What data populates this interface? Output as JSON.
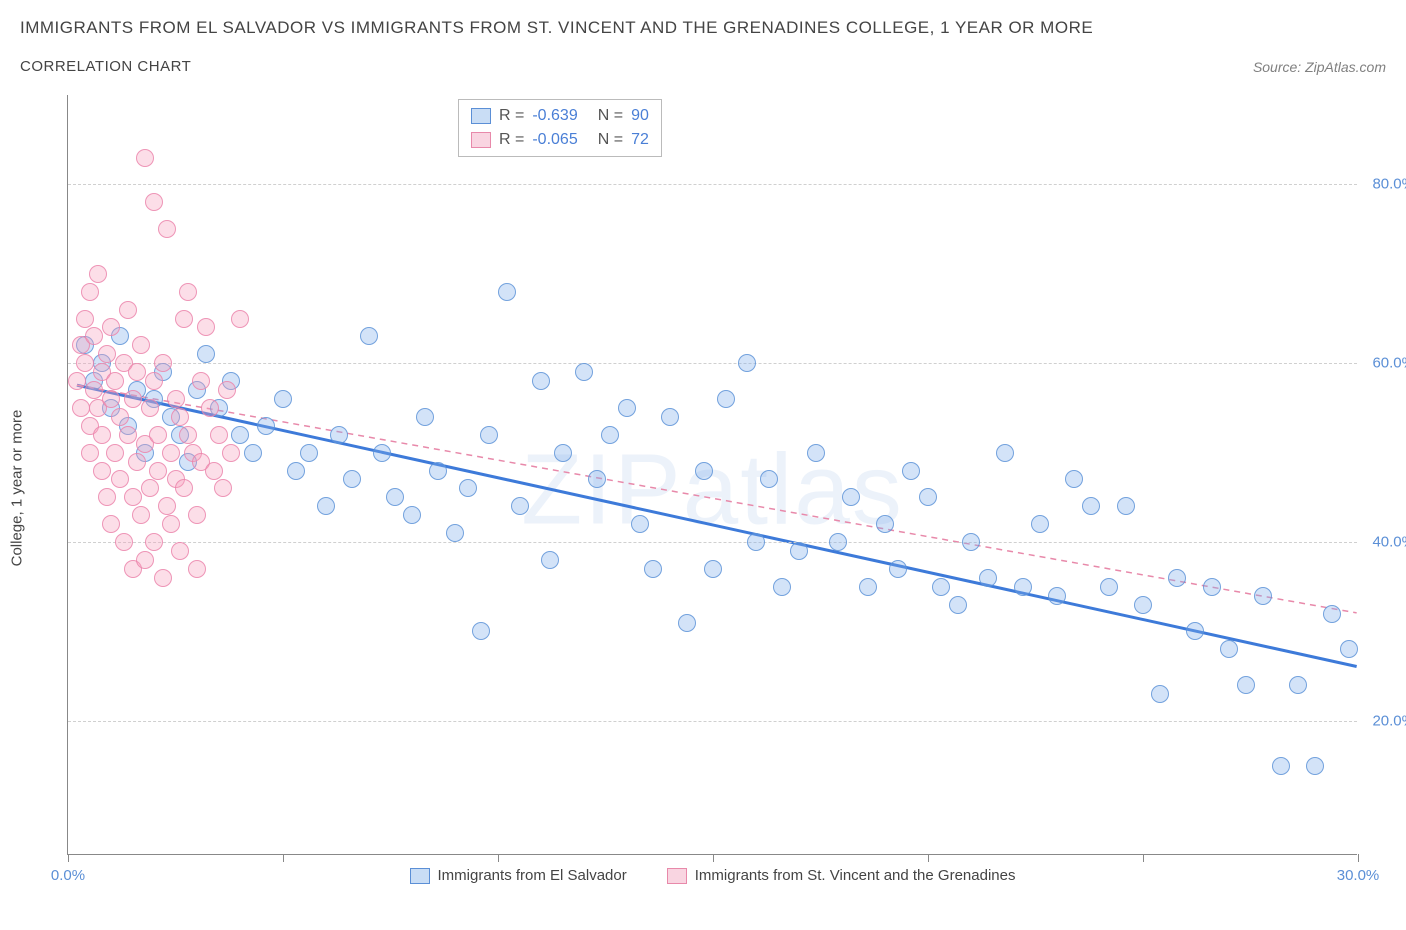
{
  "title": "IMMIGRANTS FROM EL SALVADOR VS IMMIGRANTS FROM ST. VINCENT AND THE GRENADINES COLLEGE, 1 YEAR OR MORE",
  "subtitle": "CORRELATION CHART",
  "source": "Source: ZipAtlas.com",
  "ylabel": "College, 1 year or more",
  "watermark": "ZIPatlas",
  "chart": {
    "type": "scatter",
    "xlim": [
      0,
      30
    ],
    "ylim": [
      5,
      90
    ],
    "xtick_positions": [
      0,
      5,
      10,
      15,
      20,
      25,
      30
    ],
    "xtick_labels": {
      "0": "0.0%",
      "30": "30.0%"
    },
    "ytick_positions": [
      20,
      40,
      60,
      80
    ],
    "ytick_labels": [
      "20.0%",
      "40.0%",
      "60.0%",
      "80.0%"
    ],
    "grid_color": "#d0d0d0",
    "axis_color": "#888888",
    "background_color": "#ffffff",
    "marker_size": 18,
    "marker_opacity": 0.35
  },
  "series": [
    {
      "name": "Immigrants from El Salvador",
      "color": "#78aae6",
      "border_color": "#5b8fd6",
      "R": "-0.639",
      "N": "90",
      "trend": {
        "x1": 0.2,
        "y1": 57.5,
        "x2": 30,
        "y2": 26,
        "style": "solid",
        "color": "#3d7ad9",
        "width": 3
      },
      "points": [
        [
          0.4,
          62
        ],
        [
          0.6,
          58
        ],
        [
          0.8,
          60
        ],
        [
          1.0,
          55
        ],
        [
          1.2,
          63
        ],
        [
          1.4,
          53
        ],
        [
          1.6,
          57
        ],
        [
          1.8,
          50
        ],
        [
          2.0,
          56
        ],
        [
          2.2,
          59
        ],
        [
          2.4,
          54
        ],
        [
          2.6,
          52
        ],
        [
          2.8,
          49
        ],
        [
          3.0,
          57
        ],
        [
          3.2,
          61
        ],
        [
          3.5,
          55
        ],
        [
          3.8,
          58
        ],
        [
          4.0,
          52
        ],
        [
          4.3,
          50
        ],
        [
          4.6,
          53
        ],
        [
          5.0,
          56
        ],
        [
          5.3,
          48
        ],
        [
          5.6,
          50
        ],
        [
          6.0,
          44
        ],
        [
          6.3,
          52
        ],
        [
          6.6,
          47
        ],
        [
          7.0,
          63
        ],
        [
          7.3,
          50
        ],
        [
          7.6,
          45
        ],
        [
          8.0,
          43
        ],
        [
          8.3,
          54
        ],
        [
          8.6,
          48
        ],
        [
          9.0,
          41
        ],
        [
          9.3,
          46
        ],
        [
          9.6,
          30
        ],
        [
          9.8,
          52
        ],
        [
          10.2,
          68
        ],
        [
          10.5,
          44
        ],
        [
          11.0,
          58
        ],
        [
          11.2,
          38
        ],
        [
          11.5,
          50
        ],
        [
          12.0,
          59
        ],
        [
          12.3,
          47
        ],
        [
          12.6,
          52
        ],
        [
          13.0,
          55
        ],
        [
          13.3,
          42
        ],
        [
          13.6,
          37
        ],
        [
          14.0,
          54
        ],
        [
          14.4,
          31
        ],
        [
          14.8,
          48
        ],
        [
          15.0,
          37
        ],
        [
          15.3,
          56
        ],
        [
          15.8,
          60
        ],
        [
          16.0,
          40
        ],
        [
          16.3,
          47
        ],
        [
          16.6,
          35
        ],
        [
          17.0,
          39
        ],
        [
          17.4,
          50
        ],
        [
          17.9,
          40
        ],
        [
          18.2,
          45
        ],
        [
          18.6,
          35
        ],
        [
          19.0,
          42
        ],
        [
          19.3,
          37
        ],
        [
          19.6,
          48
        ],
        [
          20.0,
          45
        ],
        [
          20.3,
          35
        ],
        [
          20.7,
          33
        ],
        [
          21.0,
          40
        ],
        [
          21.4,
          36
        ],
        [
          21.8,
          50
        ],
        [
          22.2,
          35
        ],
        [
          22.6,
          42
        ],
        [
          23.0,
          34
        ],
        [
          23.4,
          47
        ],
        [
          23.8,
          44
        ],
        [
          24.2,
          35
        ],
        [
          24.6,
          44
        ],
        [
          25.0,
          33
        ],
        [
          25.4,
          23
        ],
        [
          25.8,
          36
        ],
        [
          26.2,
          30
        ],
        [
          26.6,
          35
        ],
        [
          27.0,
          28
        ],
        [
          27.4,
          24
        ],
        [
          27.8,
          34
        ],
        [
          28.2,
          15
        ],
        [
          28.6,
          24
        ],
        [
          29.0,
          15
        ],
        [
          29.4,
          32
        ],
        [
          29.8,
          28
        ]
      ]
    },
    {
      "name": "Immigrants from St. Vincent and the Grenadines",
      "color": "#f5a0be",
      "border_color": "#e889aa",
      "R": "-0.065",
      "N": "72",
      "trend": {
        "x1": 0.2,
        "y1": 57.5,
        "x2": 30,
        "y2": 32,
        "style": "dashed",
        "color": "#e889aa",
        "width": 1.5
      },
      "points": [
        [
          0.2,
          58
        ],
        [
          0.3,
          62
        ],
        [
          0.3,
          55
        ],
        [
          0.4,
          60
        ],
        [
          0.4,
          65
        ],
        [
          0.5,
          53
        ],
        [
          0.5,
          68
        ],
        [
          0.5,
          50
        ],
        [
          0.6,
          57
        ],
        [
          0.6,
          63
        ],
        [
          0.7,
          55
        ],
        [
          0.7,
          70
        ],
        [
          0.8,
          48
        ],
        [
          0.8,
          59
        ],
        [
          0.8,
          52
        ],
        [
          0.9,
          61
        ],
        [
          0.9,
          45
        ],
        [
          1.0,
          56
        ],
        [
          1.0,
          64
        ],
        [
          1.0,
          42
        ],
        [
          1.1,
          58
        ],
        [
          1.1,
          50
        ],
        [
          1.2,
          54
        ],
        [
          1.2,
          47
        ],
        [
          1.3,
          60
        ],
        [
          1.3,
          40
        ],
        [
          1.4,
          52
        ],
        [
          1.4,
          66
        ],
        [
          1.5,
          45
        ],
        [
          1.5,
          56
        ],
        [
          1.5,
          37
        ],
        [
          1.6,
          59
        ],
        [
          1.6,
          49
        ],
        [
          1.7,
          43
        ],
        [
          1.7,
          62
        ],
        [
          1.8,
          51
        ],
        [
          1.8,
          38
        ],
        [
          1.8,
          83
        ],
        [
          1.9,
          55
        ],
        [
          1.9,
          46
        ],
        [
          2.0,
          58
        ],
        [
          2.0,
          40
        ],
        [
          2.0,
          78
        ],
        [
          2.1,
          52
        ],
        [
          2.1,
          48
        ],
        [
          2.2,
          36
        ],
        [
          2.2,
          60
        ],
        [
          2.3,
          44
        ],
        [
          2.3,
          75
        ],
        [
          2.4,
          50
        ],
        [
          2.4,
          42
        ],
        [
          2.5,
          56
        ],
        [
          2.5,
          47
        ],
        [
          2.6,
          39
        ],
        [
          2.6,
          54
        ],
        [
          2.7,
          46
        ],
        [
          2.7,
          65
        ],
        [
          2.8,
          52
        ],
        [
          2.8,
          68
        ],
        [
          2.9,
          50
        ],
        [
          3.0,
          43
        ],
        [
          3.0,
          37
        ],
        [
          3.1,
          58
        ],
        [
          3.1,
          49
        ],
        [
          3.2,
          64
        ],
        [
          3.3,
          55
        ],
        [
          3.4,
          48
        ],
        [
          3.5,
          52
        ],
        [
          3.6,
          46
        ],
        [
          3.7,
          57
        ],
        [
          3.8,
          50
        ],
        [
          4.0,
          65
        ]
      ]
    }
  ],
  "legend": {
    "R_label": "R =",
    "N_label": "N ="
  }
}
